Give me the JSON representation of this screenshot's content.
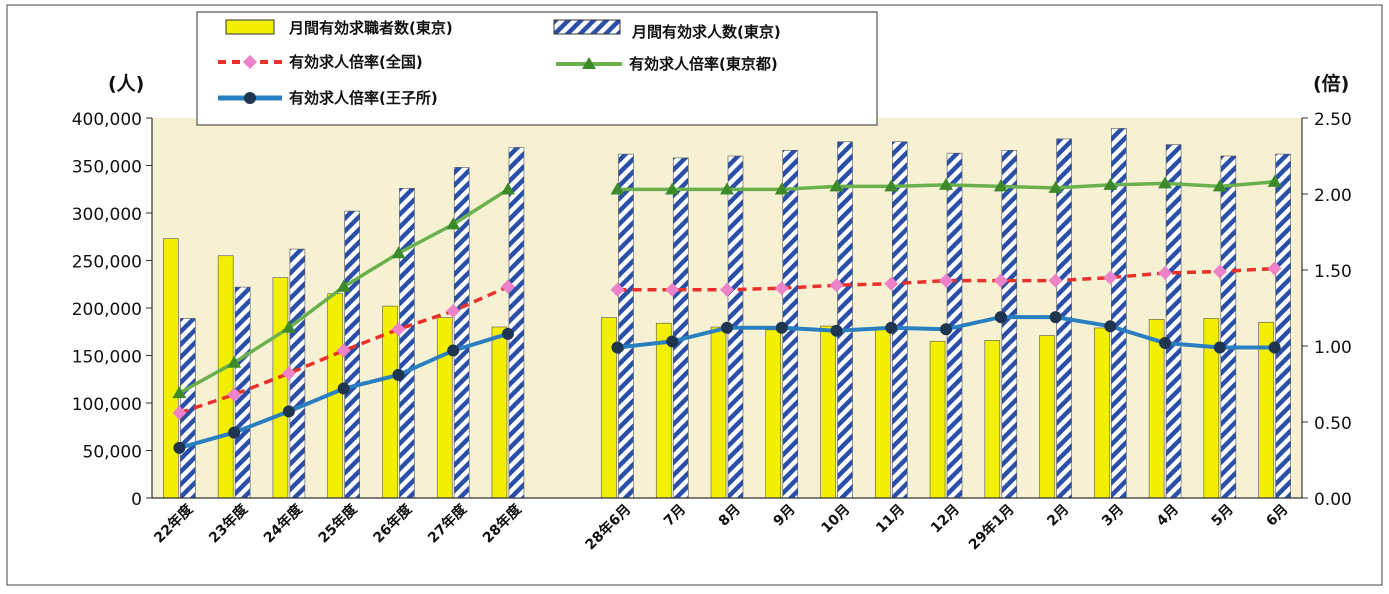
{
  "chart_data": {
    "type": "bar",
    "categories": [
      "22年度",
      "23年度",
      "24年度",
      "25年度",
      "26年度",
      "27年度",
      "28年度",
      "",
      "28年6月",
      "7月",
      "8月",
      "9月",
      "10月",
      "11月",
      "12月",
      "29年1月",
      "2月",
      "3月",
      "4月",
      "5月",
      "6月"
    ],
    "y_left": {
      "label": "(人)",
      "range": [
        0,
        400000
      ],
      "ticks": [
        "0",
        "50,000",
        "100,000",
        "150,000",
        "200,000",
        "250,000",
        "300,000",
        "350,000",
        "400,000"
      ]
    },
    "y_right": {
      "label": "(倍)",
      "range": [
        0,
        2.5
      ],
      "ticks": [
        "0.00",
        "0.50",
        "1.00",
        "1.50",
        "2.00",
        "2.50"
      ]
    },
    "series": [
      {
        "name": "月間有効求職者数(東京)",
        "kind": "bar",
        "axis": "left",
        "color": "#f2ef00",
        "values": [
          273000,
          255000,
          232000,
          215000,
          202000,
          190000,
          180000,
          null,
          190000,
          184000,
          180000,
          177000,
          181000,
          179000,
          165000,
          166000,
          171000,
          179000,
          188000,
          189000,
          185000
        ]
      },
      {
        "name": "月間有効求人数(東京)",
        "kind": "bar",
        "axis": "left",
        "color": "#2a4fa8",
        "pattern": "diagonal-stripes",
        "values": [
          189000,
          222000,
          262000,
          302000,
          326000,
          348000,
          369000,
          null,
          362000,
          358000,
          360000,
          366000,
          375000,
          375000,
          363000,
          366000,
          378000,
          389000,
          372000,
          360000,
          362000
        ]
      },
      {
        "name": "有効求人倍率(全国)",
        "kind": "line",
        "axis": "right",
        "color": "#e8312a",
        "marker_color": "#ee82c8",
        "dash": true,
        "values": [
          0.56,
          0.68,
          0.82,
          0.97,
          1.11,
          1.23,
          1.39,
          null,
          1.37,
          1.37,
          1.37,
          1.38,
          1.4,
          1.41,
          1.43,
          1.43,
          1.43,
          1.45,
          1.48,
          1.49,
          1.51
        ]
      },
      {
        "name": "有効求人倍率(東京都)",
        "kind": "line",
        "axis": "right",
        "color": "#6ab04c",
        "values": [
          0.69,
          0.89,
          1.12,
          1.39,
          1.61,
          1.8,
          2.03,
          null,
          2.03,
          2.03,
          2.03,
          2.03,
          2.05,
          2.05,
          2.06,
          2.05,
          2.04,
          2.06,
          2.07,
          2.05,
          2.08
        ]
      },
      {
        "name": "有効求人倍率(王子所)",
        "kind": "line",
        "axis": "right",
        "color": "#2a7fc1",
        "marker_color": "#1f3550",
        "values": [
          0.33,
          0.43,
          0.57,
          0.72,
          0.81,
          0.97,
          1.08,
          null,
          0.99,
          1.03,
          1.12,
          1.12,
          1.1,
          1.12,
          1.11,
          1.19,
          1.19,
          1.13,
          1.02,
          0.99,
          0.99
        ]
      }
    ],
    "plot_bg": "#f7f1d4",
    "legend_placement": "top-left"
  }
}
